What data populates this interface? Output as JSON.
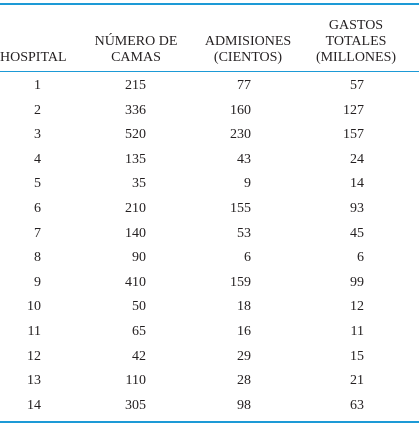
{
  "table": {
    "headers": {
      "hospital": "HOSPITAL",
      "camas": [
        "NÚMERO DE",
        "CAMAS"
      ],
      "admisiones": [
        "ADMISIONES",
        "(CIENTOS)"
      ],
      "gastos": [
        "GASTOS",
        "TOTALES",
        "(MILLONES)"
      ]
    },
    "rows": [
      {
        "hospital": "1",
        "camas": "215",
        "admisiones": "77",
        "gastos": "57"
      },
      {
        "hospital": "2",
        "camas": "336",
        "admisiones": "160",
        "gastos": "127"
      },
      {
        "hospital": "3",
        "camas": "520",
        "admisiones": "230",
        "gastos": "157"
      },
      {
        "hospital": "4",
        "camas": "135",
        "admisiones": "43",
        "gastos": "24"
      },
      {
        "hospital": "5",
        "camas": "35",
        "admisiones": "9",
        "gastos": "14"
      },
      {
        "hospital": "6",
        "camas": "210",
        "admisiones": "155",
        "gastos": "93"
      },
      {
        "hospital": "7",
        "camas": "140",
        "admisiones": "53",
        "gastos": "45"
      },
      {
        "hospital": "8",
        "camas": "90",
        "admisiones": "6",
        "gastos": "6"
      },
      {
        "hospital": "9",
        "camas": "410",
        "admisiones": "159",
        "gastos": "99"
      },
      {
        "hospital": "10",
        "camas": "50",
        "admisiones": "18",
        "gastos": "12"
      },
      {
        "hospital": "11",
        "camas": "65",
        "admisiones": "16",
        "gastos": "11"
      },
      {
        "hospital": "12",
        "camas": "42",
        "admisiones": "29",
        "gastos": "15"
      },
      {
        "hospital": "13",
        "camas": "110",
        "admisiones": "28",
        "gastos": "21"
      },
      {
        "hospital": "14",
        "camas": "305",
        "admisiones": "98",
        "gastos": "63"
      }
    ]
  },
  "colors": {
    "rule": "#1d9ad6",
    "text": "#231f20"
  }
}
